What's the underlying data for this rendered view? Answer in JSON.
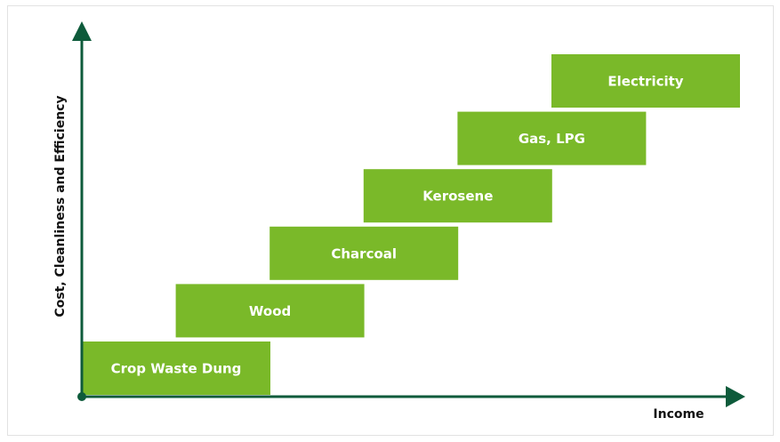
{
  "axes": {
    "y_label": "Cost, Cleanliness and Efficiency",
    "x_label": "Income"
  },
  "steps": [
    {
      "label": "Crop Waste Dung"
    },
    {
      "label": "Wood"
    },
    {
      "label": "Charcoal"
    },
    {
      "label": "Kerosene"
    },
    {
      "label": "Gas, LPG"
    },
    {
      "label": "Electricity"
    }
  ]
}
